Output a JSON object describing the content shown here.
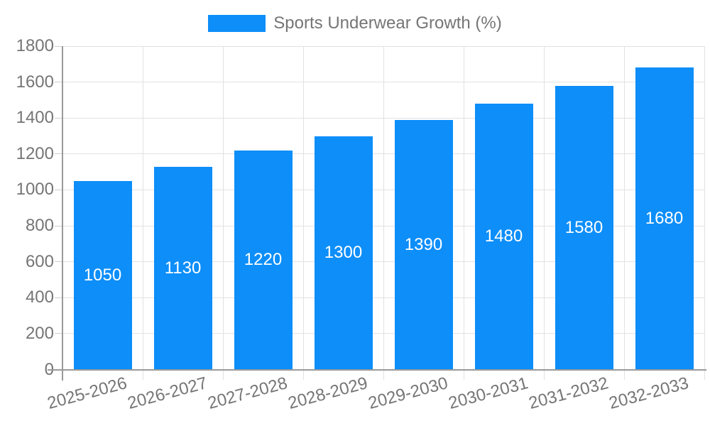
{
  "chart_data": {
    "type": "bar",
    "title": "",
    "xlabel": "",
    "ylabel": "",
    "categories": [
      "2025-2026",
      "2026-2027",
      "2027-2028",
      "2028-2029",
      "2029-2030",
      "2030-2031",
      "2031-2032",
      "2032-2033"
    ],
    "series": [
      {
        "name": "Sports Underwear Growth (%)",
        "values": [
          1050,
          1130,
          1220,
          1300,
          1390,
          1480,
          1580,
          1680
        ]
      }
    ],
    "values": [
      1050,
      1130,
      1220,
      1300,
      1390,
      1480,
      1580,
      1680
    ],
    "value_labels": [
      "1050",
      "1130",
      "1220",
      "1300",
      "1390",
      "1480",
      "1580",
      "1680"
    ],
    "legend": [
      "Sports Underwear Growth (%)"
    ],
    "legend_position": "top-center",
    "ylim": [
      0,
      1800
    ],
    "ytick_step": 200,
    "yticks": [
      0,
      200,
      400,
      600,
      800,
      1000,
      1200,
      1400,
      1600,
      1800
    ],
    "grid": true,
    "xtick_rotation_deg": -15,
    "value_label_position": "inside-center"
  },
  "colors": {
    "bar": "#0d8ef9",
    "grid": "#e2e2e2",
    "tick_mark": "#cfcfcf",
    "axis": "#9a9a9a",
    "tick_label": "#757575",
    "legend_text": "#757575",
    "value_label": "#ffffff",
    "background": "#ffffff"
  }
}
